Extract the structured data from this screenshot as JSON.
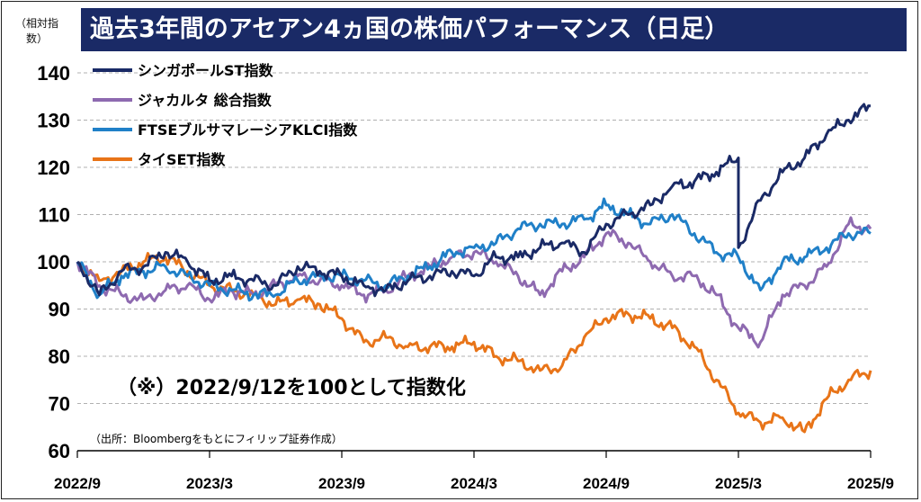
{
  "chart_data": {
    "type": "line",
    "title": "過去3年間のアセアン4ヵ国の株価パフォーマンス（日足）",
    "ylabel": "（相対指数）",
    "ylim": [
      60,
      140
    ],
    "yticks": [
      60,
      70,
      80,
      90,
      100,
      110,
      120,
      130,
      140
    ],
    "x_categories": [
      "2022/9",
      "2023/3",
      "2023/9",
      "2024/3",
      "2024/9",
      "2025/3",
      "2025/9"
    ],
    "grid": "horizontal dashed",
    "legend_position": "top-left",
    "annotation": "（※）2022/9/12を100として指数化",
    "source": "（出所：Bloombergをもとにフィリップ証券作成）",
    "series": [
      {
        "name": "シンガポールST指数",
        "color": "#1a2a66",
        "x": [
          "2022-09",
          "2022-10",
          "2022-11",
          "2022-12",
          "2023-01",
          "2023-02",
          "2023-03",
          "2023-04",
          "2023-05",
          "2023-06",
          "2023-07",
          "2023-08",
          "2023-09",
          "2023-10",
          "2023-11",
          "2023-12",
          "2024-01",
          "2024-02",
          "2024-03",
          "2024-04",
          "2024-05",
          "2024-06",
          "2024-07",
          "2024-08",
          "2024-09",
          "2024-10",
          "2024-11",
          "2024-12",
          "2025-01",
          "2025-02",
          "2025-03",
          "2025-03",
          "2025-04",
          "2025-05",
          "2025-06",
          "2025-07",
          "2025-08",
          "2025-09"
        ],
        "values": [
          100,
          93,
          98,
          99,
          102,
          100,
          96,
          97,
          96,
          95,
          99,
          98,
          97,
          95,
          94,
          96,
          97,
          98,
          97,
          101,
          101,
          103,
          104,
          102,
          108,
          110,
          112,
          116,
          117,
          119,
          122,
          103,
          113,
          119,
          122,
          127,
          130,
          133
        ]
      },
      {
        "name": "ジャカルタ 総合指数",
        "color": "#8e6ab0",
        "x": [
          "2022-09",
          "2022-10",
          "2022-11",
          "2022-12",
          "2023-01",
          "2023-02",
          "2023-03",
          "2023-04",
          "2023-05",
          "2023-06",
          "2023-07",
          "2023-08",
          "2023-09",
          "2023-10",
          "2023-11",
          "2023-12",
          "2024-01",
          "2024-02",
          "2024-03",
          "2024-04",
          "2024-05",
          "2024-06",
          "2024-07",
          "2024-08",
          "2024-09",
          "2024-10",
          "2024-11",
          "2024-12",
          "2025-01",
          "2025-02",
          "2025-03",
          "2025-04",
          "2025-05",
          "2025-06",
          "2025-07",
          "2025-08",
          "2025-09"
        ],
        "values": [
          100,
          95,
          93,
          92,
          94,
          95,
          92,
          94,
          93,
          95,
          97,
          96,
          95,
          93,
          94,
          97,
          99,
          101,
          102,
          100,
          97,
          93,
          98,
          101,
          106,
          104,
          100,
          97,
          97,
          93,
          86,
          83,
          93,
          95,
          99,
          108,
          107
        ]
      },
      {
        "name": "FTSEブルサマレーシアKLCI指数",
        "color": "#2080c8",
        "x": [
          "2022-09",
          "2022-10",
          "2022-11",
          "2022-12",
          "2023-01",
          "2023-02",
          "2023-03",
          "2023-04",
          "2023-05",
          "2023-06",
          "2023-07",
          "2023-08",
          "2023-09",
          "2023-10",
          "2023-11",
          "2023-12",
          "2024-01",
          "2024-02",
          "2024-03",
          "2024-04",
          "2024-05",
          "2024-06",
          "2024-07",
          "2024-08",
          "2024-09",
          "2024-10",
          "2024-11",
          "2024-12",
          "2025-01",
          "2025-02",
          "2025-03",
          "2025-04",
          "2025-05",
          "2025-06",
          "2025-07",
          "2025-08",
          "2025-09"
        ],
        "values": [
          100,
          93,
          97,
          98,
          99,
          97,
          95,
          94,
          93,
          93,
          96,
          97,
          97,
          96,
          95,
          97,
          99,
          102,
          103,
          104,
          107,
          108,
          108,
          109,
          112,
          110,
          108,
          110,
          106,
          102,
          101,
          94,
          100,
          101,
          103,
          106,
          106
        ]
      },
      {
        "name": "タイSET指数",
        "color": "#e87418",
        "x": [
          "2022-09",
          "2022-10",
          "2022-11",
          "2022-12",
          "2023-01",
          "2023-02",
          "2023-03",
          "2023-04",
          "2023-05",
          "2023-06",
          "2023-07",
          "2023-08",
          "2023-09",
          "2023-10",
          "2023-11",
          "2023-12",
          "2024-01",
          "2024-02",
          "2024-03",
          "2024-04",
          "2024-05",
          "2024-06",
          "2024-07",
          "2024-08",
          "2024-09",
          "2024-10",
          "2024-11",
          "2024-12",
          "2025-01",
          "2025-02",
          "2025-03",
          "2025-04",
          "2025-05",
          "2025-06",
          "2025-07",
          "2025-08",
          "2025-09"
        ],
        "values": [
          100,
          96,
          98,
          100,
          101,
          98,
          95,
          94,
          93,
          91,
          92,
          91,
          88,
          83,
          84,
          82,
          82,
          82,
          83,
          80,
          79,
          77,
          78,
          84,
          88,
          89,
          88,
          86,
          82,
          75,
          68,
          66,
          67,
          64,
          71,
          75,
          77
        ]
      }
    ]
  }
}
